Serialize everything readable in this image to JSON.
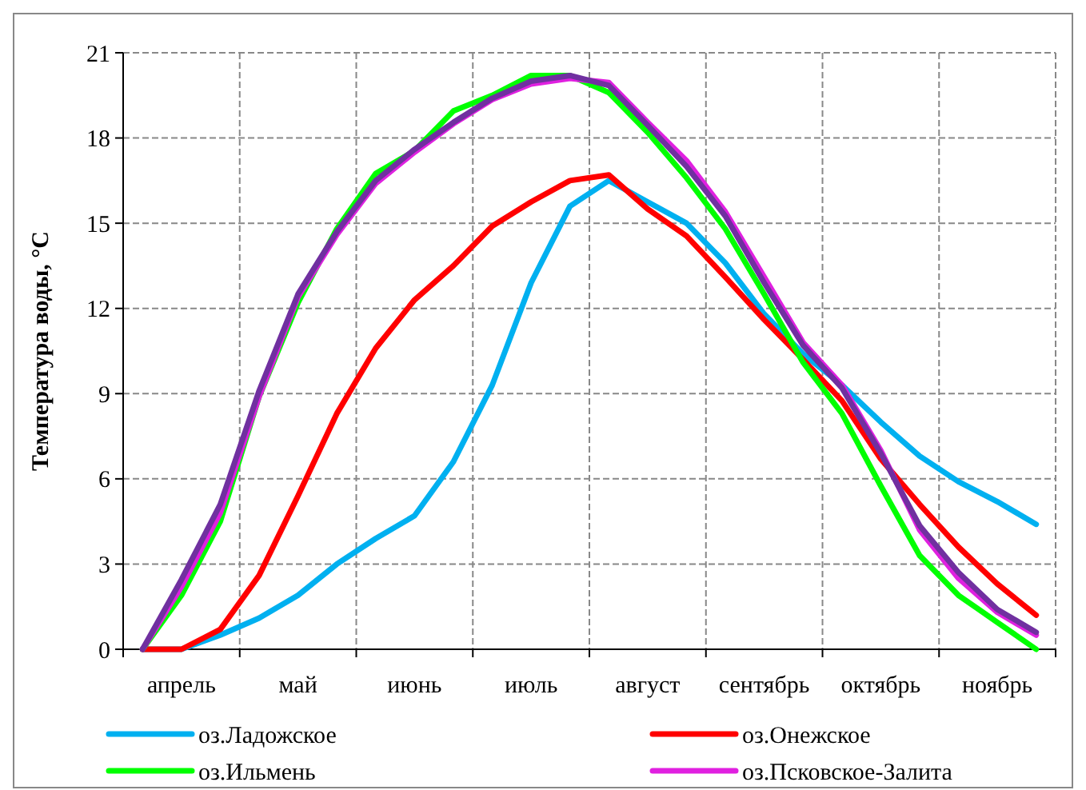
{
  "chart_data": {
    "type": "line",
    "ylabel": "Температура воды, °C",
    "categories": [
      null,
      "апрель",
      null,
      null,
      "май",
      null,
      null,
      "июнь",
      null,
      null,
      "июль",
      null,
      null,
      "август",
      null,
      null,
      "сентябрь",
      null,
      null,
      "октябрь",
      null,
      null,
      "ноябрь",
      null
    ],
    "ylim": [
      0,
      21
    ],
    "yticks": [
      0,
      3,
      6,
      9,
      12,
      15,
      18,
      21
    ],
    "grid": true,
    "legend": "bottom",
    "marker": "none",
    "line_style": "solid",
    "series": [
      {
        "name": "оз.Ладожское",
        "color": "#00b0f0",
        "values": [
          0,
          0,
          0.5,
          1.1,
          1.9,
          3.0,
          3.9,
          4.7,
          6.6,
          9.3,
          12.9,
          15.6,
          16.5,
          15.75,
          15.0,
          13.6,
          11.8,
          10.4,
          9.3,
          8.0,
          6.8,
          5.9,
          5.2,
          4.4
        ]
      },
      {
        "name": "оз.Онежское",
        "color": "#ff0000",
        "values": [
          0,
          0,
          0.7,
          2.6,
          5.4,
          8.3,
          10.6,
          12.3,
          13.5,
          14.9,
          15.75,
          16.5,
          16.7,
          15.5,
          14.55,
          13.1,
          11.6,
          10.2,
          8.75,
          6.7,
          5.1,
          3.6,
          2.3,
          1.2
        ]
      },
      {
        "name": "оз.Ильмень",
        "color": "#00ff00",
        "values": [
          0,
          1.9,
          4.5,
          8.9,
          12.2,
          14.8,
          16.75,
          17.55,
          18.95,
          19.5,
          20.2,
          20.2,
          19.6,
          18.2,
          16.6,
          14.8,
          12.5,
          10.1,
          8.3,
          5.75,
          3.3,
          1.9,
          0.95,
          0
        ]
      },
      {
        "name": "оз.Псковское-Залита",
        "color": "#e020e0",
        "values": [
          0,
          2.2,
          4.8,
          8.9,
          12.4,
          14.6,
          16.4,
          17.5,
          18.5,
          19.35,
          19.9,
          20.1,
          19.95,
          18.55,
          17.2,
          15.4,
          13.1,
          10.8,
          9.3,
          7.0,
          4.2,
          2.5,
          1.3,
          0.5
        ]
      },
      {
        "color": "#7030a0",
        "values": [
          0,
          2.45,
          5.1,
          9.1,
          12.5,
          14.7,
          16.5,
          17.6,
          18.55,
          19.4,
          20.0,
          20.2,
          19.85,
          18.45,
          17.0,
          15.25,
          12.9,
          10.7,
          9.2,
          6.9,
          4.35,
          2.7,
          1.4,
          0.6
        ]
      }
    ]
  }
}
